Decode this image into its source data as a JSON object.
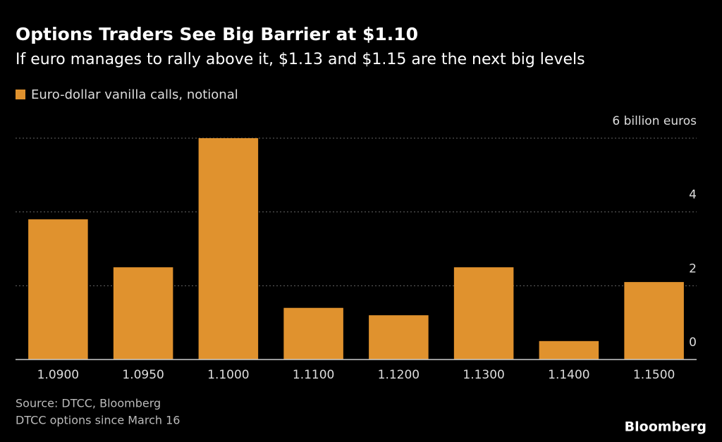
{
  "chart_data": {
    "type": "bar",
    "title": "Options Traders See Big Barrier at $1.10",
    "subtitle": "If euro manages to rally above it, $1.13 and $1.15 are the next big levels",
    "series": [
      {
        "name": "Euro-dollar vanilla calls, notional",
        "color": "#e0922e",
        "values": [
          3.8,
          2.5,
          6.0,
          1.4,
          1.2,
          2.5,
          0.5,
          2.1
        ]
      }
    ],
    "categories": [
      "1.0900",
      "1.0950",
      "1.1000",
      "1.1100",
      "1.1200",
      "1.1300",
      "1.1400",
      "1.1500"
    ],
    "ylim": [
      0,
      6
    ],
    "yticks": [
      0,
      2,
      4,
      {
        "value": 6,
        "label": "6 billion euros"
      }
    ],
    "grid": true,
    "source": "Source: DTCC, Bloomberg",
    "note": "DTCC options since March 16",
    "logo": "Bloomberg"
  }
}
